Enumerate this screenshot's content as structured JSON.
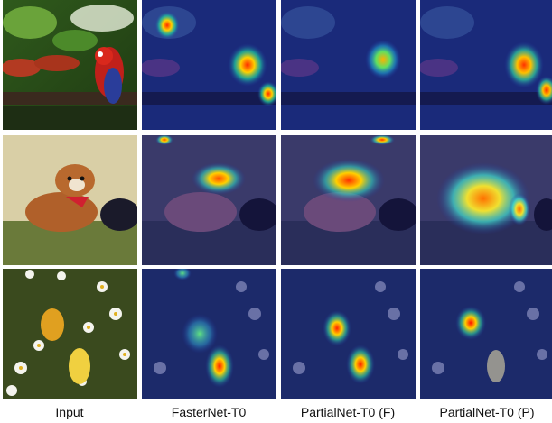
{
  "figure": {
    "columns": [
      {
        "label": "Input",
        "kind": "input"
      },
      {
        "label": "FasterNet-T0",
        "kind": "heatmap"
      },
      {
        "label": "PartialNet-T0 (F)",
        "kind": "heatmap"
      },
      {
        "label": "PartialNet-T0 (P)",
        "kind": "heatmap"
      }
    ],
    "rows": [
      {
        "subject": "parrot"
      },
      {
        "subject": "dog"
      },
      {
        "subject": "butterflies"
      }
    ]
  }
}
